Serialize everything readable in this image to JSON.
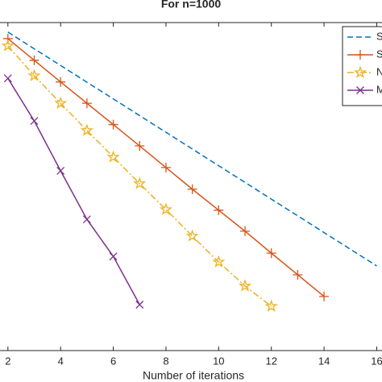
{
  "chart_data": {
    "type": "line",
    "title": "For n=1000",
    "xlabel": "Number of iterations",
    "xlim": [
      1.7,
      16.2
    ],
    "xticks": [
      2,
      4,
      6,
      8,
      10,
      12,
      14,
      16
    ],
    "ylim": [
      0,
      100
    ],
    "legend": "upper right",
    "series": [
      {
        "name": "S",
        "color": "#0072BD",
        "style": "dashed",
        "marker": "none",
        "x": [
          2,
          16
        ],
        "values": [
          97.1,
          25.8
        ]
      },
      {
        "name": "S",
        "color": "#D95319",
        "style": "solid",
        "marker": "plus",
        "x": [
          2,
          3,
          4,
          5,
          6,
          7,
          8,
          9,
          10,
          11,
          12,
          13,
          14
        ],
        "values": [
          95.1,
          88.5,
          81.9,
          75.4,
          68.9,
          62.4,
          55.8,
          49.2,
          42.8,
          36.4,
          29.7,
          23.1,
          16.5
        ]
      },
      {
        "name": "N",
        "color": "#EDB120",
        "style": "dashdot",
        "marker": "star",
        "x": [
          2,
          3,
          4,
          5,
          6,
          7,
          8,
          9,
          10,
          11,
          12
        ],
        "values": [
          92.9,
          83.8,
          75.4,
          67.1,
          59.0,
          50.9,
          43.0,
          34.9,
          27.0,
          19.7,
          13.5
        ]
      },
      {
        "name": "M",
        "color": "#7E2F8E",
        "style": "solid",
        "marker": "x",
        "x": [
          2,
          3,
          4,
          5,
          6,
          7
        ],
        "values": [
          83.0,
          70.0,
          54.8,
          40.0,
          28.7,
          14.0
        ]
      }
    ]
  }
}
